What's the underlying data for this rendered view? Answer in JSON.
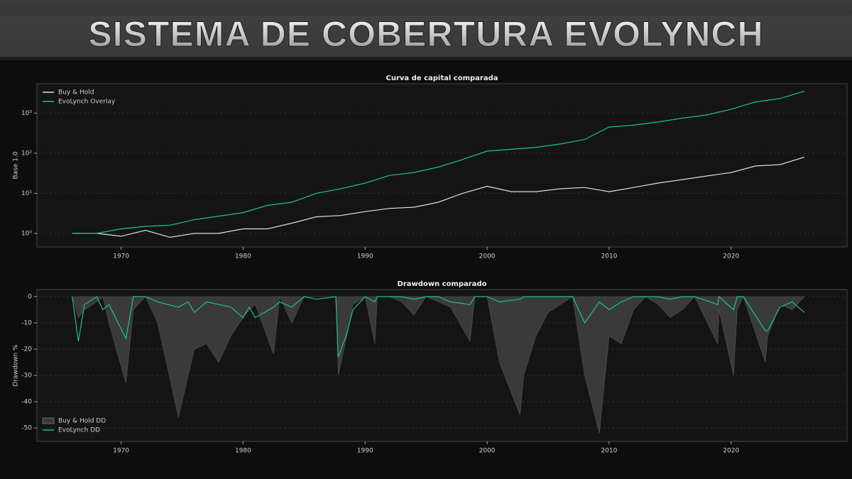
{
  "banner_title": "SISTEMA DE COBERTURA EVOLYNCH",
  "chart_data": [
    {
      "type": "line",
      "title": "Curva de capital comparada",
      "ylabel": "Base 1.0",
      "log": true,
      "legend": "upper left",
      "grid": true,
      "xlim": [
        1963.1,
        2029.5
      ],
      "xticks": [
        1970,
        1980,
        1990,
        2000,
        2010,
        2020
      ],
      "ylim": [
        0.46,
        5400
      ],
      "yticks": [
        {
          "value": 1,
          "label": "10⁰"
        },
        {
          "value": 10,
          "label": "10¹"
        },
        {
          "value": 100,
          "label": "10²"
        },
        {
          "value": 1000,
          "label": "10³"
        }
      ],
      "x": [
        1966,
        1968,
        1970,
        1972,
        1974,
        1976,
        1978,
        1980,
        1982,
        1984,
        1986,
        1988,
        1990,
        1992,
        1994,
        1996,
        1998,
        2000,
        2002,
        2004,
        2006,
        2008,
        2010,
        2012,
        2014,
        2016,
        2018,
        2020,
        2022,
        2024,
        2026
      ],
      "series": [
        {
          "name": "Buy & Hold",
          "color": "#dddddd",
          "style": "line",
          "values": [
            1,
            1.0,
            0.85,
            1.2,
            0.8,
            1.0,
            1.0,
            1.3,
            1.3,
            1.8,
            2.6,
            2.8,
            3.5,
            4.2,
            4.5,
            6,
            10,
            15,
            11,
            11,
            13,
            14,
            11,
            14,
            18,
            22,
            27,
            33,
            48,
            52,
            80
          ]
        },
        {
          "name": "EvoLynch Overlay",
          "color": "#1fbf8f",
          "style": "line",
          "values": [
            1,
            1.0,
            1.3,
            1.5,
            1.6,
            2.2,
            2.7,
            3.3,
            5,
            6,
            10,
            13,
            18,
            28,
            33,
            45,
            70,
            113,
            125,
            140,
            170,
            220,
            450,
            500,
            600,
            750,
            900,
            1250,
            1900,
            2300,
            3500
          ]
        }
      ]
    },
    {
      "type": "line",
      "title": "Drawdown comparado",
      "ylabel": "Drawdown %",
      "log": false,
      "legend": "lower left",
      "grid": true,
      "xlim": [
        1963.1,
        2029.5
      ],
      "xticks": [
        1970,
        1980,
        1990,
        2000,
        2010,
        2020
      ],
      "ylim": [
        -55.1,
        2.7
      ],
      "yticks": [
        0,
        -10,
        -20,
        -30,
        -40,
        -50
      ],
      "x": [
        1966,
        1966.5,
        1967,
        1968,
        1968.5,
        1969,
        1970.4,
        1971,
        1972,
        1973,
        1974.7,
        1975.5,
        1976,
        1977,
        1978,
        1979,
        1980,
        1980.5,
        1981,
        1982.5,
        1983,
        1984,
        1985,
        1986,
        1987.6,
        1987.8,
        1988.5,
        1989,
        1990,
        1990.8,
        1991,
        1992,
        1993,
        1994,
        1995,
        1996,
        1997,
        1998.6,
        1999,
        2000,
        2001,
        2002.7,
        2003,
        2004,
        2005,
        2006,
        2007,
        2008,
        2009.2,
        2010,
        2011,
        2012,
        2013,
        2014,
        2015,
        2016,
        2017,
        2018.9,
        2019,
        2020.2,
        2020.5,
        2021,
        2022.8,
        2023,
        2024,
        2025,
        2026
      ],
      "series": [
        {
          "name": "Buy & Hold DD",
          "color": "#3a3a3a",
          "style": "area",
          "values": [
            0,
            -8,
            -5,
            -2,
            0,
            -10,
            -33,
            -5,
            0,
            -10,
            -46,
            -30,
            -20,
            -18,
            -25,
            -15,
            -8,
            -5,
            -3,
            -22,
            0,
            -10,
            0,
            0,
            0,
            -30,
            -15,
            -3,
            0,
            -18,
            0,
            0,
            -2,
            -7,
            0,
            -2,
            -4,
            -17,
            0,
            0,
            -25,
            -45,
            -30,
            -15,
            -6,
            -3,
            0,
            -30,
            -52,
            -15,
            -18,
            -5,
            0,
            -3,
            -8,
            -5,
            0,
            -18,
            -5,
            -30,
            -5,
            0,
            -25,
            -15,
            -3,
            -5,
            0
          ]
        },
        {
          "name": "EvoLynch DD",
          "color": "#1fbf8f",
          "style": "line",
          "values": [
            0,
            -17,
            -3,
            0,
            -5,
            -3,
            -16,
            0,
            0,
            -2,
            -4,
            -2,
            -6,
            -2,
            -3,
            -4,
            -8,
            -4,
            -8,
            -4,
            -2,
            -4,
            0,
            -1,
            0,
            -23,
            -14,
            -5,
            0,
            -2,
            0,
            0,
            0,
            -1,
            0,
            0,
            -2,
            -3,
            0,
            0,
            -2,
            -1,
            0,
            0,
            0,
            0,
            0,
            -10,
            -2,
            -5,
            -2,
            0,
            0,
            0,
            -1,
            0,
            0,
            -3,
            0,
            -5,
            0,
            0,
            -13,
            -13,
            -4,
            -2,
            -6
          ]
        }
      ]
    }
  ]
}
